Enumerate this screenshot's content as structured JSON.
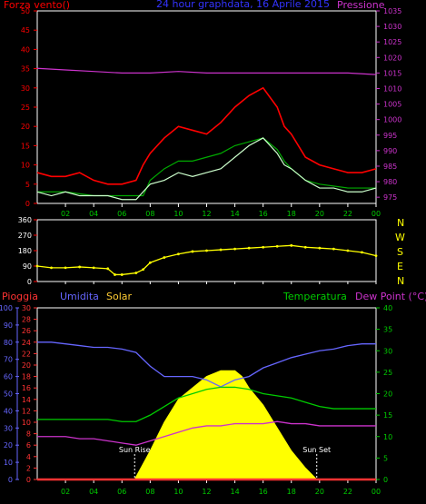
{
  "header": {
    "left_label": "Forza vento()",
    "title": "24 hour graphdata, 16 Aprile 2015",
    "right_label": "Pressione"
  },
  "wind_dir_labels": [
    "N",
    "W",
    "S",
    "E",
    "N"
  ],
  "bottom_header": {
    "rain_label": "Pioggia",
    "humidity_label": "Umidita",
    "solar_label": "Solar",
    "temp_label": "Temperatura",
    "dew_label": "Dew Point (°C)"
  },
  "sun_labels": {
    "rise": "Sun Rise",
    "set": "Sun Set"
  },
  "colors": {
    "wind_gust": "#ff0000",
    "wind_avg": "#ccffcc",
    "wind_hi": "#00aa00",
    "pressure": "#cc33cc",
    "direction": "#ffff00",
    "rain": "#ff3333",
    "humidity": "#6666ff",
    "solar": "#ffff00",
    "temperature": "#00cc00",
    "dewpoint": "#cc33cc",
    "axis_left": "#ff0000",
    "axis_right": "#cc33cc",
    "axis_humidity": "#6666ff",
    "axis_temp": "#00cc00",
    "time_ticks": "#00cc00"
  },
  "chart_data": [
    {
      "type": "line",
      "id": "wind_pressure",
      "x_ticks": [
        "02",
        "04",
        "06",
        "08",
        "10",
        "12",
        "14",
        "16",
        "18",
        "20",
        "22",
        "00"
      ],
      "left_axis": {
        "label": "Forza vento()",
        "ticks": [
          0,
          5,
          10,
          15,
          20,
          25,
          30,
          35,
          40,
          45,
          50
        ],
        "range": [
          0,
          50
        ]
      },
      "right_axis": {
        "label": "Pressione",
        "ticks": [
          975,
          980,
          985,
          990,
          995,
          1000,
          1005,
          1010,
          1015,
          1020,
          1025,
          1030,
          1035
        ],
        "range": [
          973,
          1035
        ]
      },
      "series": [
        {
          "color_key": "wind_gust",
          "x": [
            0,
            1,
            2,
            3,
            4,
            5,
            6,
            7,
            7.5,
            8,
            9,
            10,
            11,
            12,
            13,
            14,
            15,
            16,
            17,
            17.5,
            18,
            19,
            20,
            21,
            22,
            23,
            24
          ],
          "y": [
            8,
            7,
            7,
            8,
            6,
            5,
            5,
            6,
            10,
            13,
            17,
            20,
            19,
            18,
            21,
            25,
            28,
            30,
            25,
            20,
            18,
            12,
            10,
            9,
            8,
            8,
            9
          ]
        },
        {
          "color_key": "wind_hi",
          "x": [
            0,
            2,
            4,
            6,
            7.5,
            8,
            9,
            10,
            11,
            12,
            13,
            14,
            15,
            16,
            17,
            17.5,
            18,
            19,
            20,
            22,
            24
          ],
          "y": [
            3,
            3,
            2,
            2,
            2,
            6,
            9,
            11,
            11,
            12,
            13,
            15,
            16,
            17,
            14,
            11,
            9,
            6,
            5,
            4,
            4
          ]
        },
        {
          "color_key": "wind_avg",
          "x": [
            0,
            1,
            2,
            3,
            4,
            5,
            6,
            7,
            7.5,
            8,
            9,
            10,
            11,
            12,
            13,
            14,
            15,
            16,
            17,
            17.5,
            18,
            19,
            20,
            21,
            22,
            23,
            24
          ],
          "y": [
            3,
            2,
            3,
            2,
            2,
            2,
            1,
            1,
            3,
            5,
            6,
            8,
            7,
            8,
            9,
            12,
            15,
            17,
            13,
            10,
            9,
            6,
            4,
            4,
            3,
            3,
            4
          ]
        },
        {
          "color_key": "pressure",
          "x": [
            0,
            2,
            4,
            6,
            8,
            10,
            12,
            14,
            16,
            18,
            20,
            22,
            24
          ],
          "y": [
            1016.5,
            1016,
            1015.5,
            1015,
            1015,
            1015.5,
            1015,
            1015,
            1015,
            1015,
            1015,
            1015,
            1014.5
          ]
        }
      ]
    },
    {
      "type": "scatter",
      "id": "wind_direction",
      "x_ticks": [
        "02",
        "04",
        "06",
        "08",
        "10",
        "12",
        "14",
        "16",
        "18",
        "20",
        "22",
        "00"
      ],
      "left_axis": {
        "ticks": [
          0,
          90,
          180,
          270,
          360
        ],
        "range": [
          0,
          360
        ]
      },
      "series": [
        {
          "color_key": "direction",
          "x": [
            0,
            1,
            2,
            3,
            4,
            5,
            5.5,
            6,
            7,
            7.5,
            8,
            9,
            10,
            11,
            12,
            13,
            14,
            15,
            16,
            17,
            18,
            19,
            20,
            21,
            22,
            23,
            24
          ],
          "y": [
            90,
            80,
            80,
            85,
            80,
            75,
            40,
            40,
            50,
            70,
            110,
            140,
            160,
            175,
            180,
            185,
            190,
            195,
            200,
            205,
            210,
            200,
            195,
            190,
            180,
            170,
            150
          ]
        }
      ]
    },
    {
      "type": "area",
      "id": "rain_humidity_solar_temp",
      "x_ticks": [
        "02",
        "04",
        "06",
        "08",
        "10",
        "12",
        "14",
        "16",
        "18",
        "20",
        "22",
        "00"
      ],
      "humidity_axis": {
        "ticks": [
          0,
          10,
          20,
          30,
          40,
          50,
          60,
          70,
          80,
          90,
          100
        ],
        "range": [
          0,
          100
        ]
      },
      "rain_axis": {
        "ticks": [
          0,
          2,
          4,
          6,
          8,
          10,
          12,
          14,
          16,
          18,
          20,
          22,
          24,
          26,
          28,
          30
        ],
        "range": [
          0,
          30
        ]
      },
      "temp_axis": {
        "ticks": [
          0,
          5,
          10,
          15,
          20,
          25,
          30,
          35,
          40
        ],
        "range": [
          0,
          40
        ]
      },
      "series": [
        {
          "color_key": "humidity",
          "axis": "humidity",
          "x": [
            0,
            1,
            2,
            3,
            4,
            5,
            6,
            7,
            8,
            9,
            10,
            11,
            12,
            13,
            14,
            15,
            16,
            17,
            18,
            19,
            20,
            21,
            22,
            23,
            24
          ],
          "y": [
            80,
            80,
            79,
            78,
            77,
            77,
            76,
            74,
            66,
            60,
            60,
            60,
            58,
            54,
            58,
            60,
            65,
            68,
            71,
            73,
            75,
            76,
            78,
            79,
            79
          ]
        },
        {
          "color_key": "temperature",
          "axis": "temp",
          "x": [
            0,
            1,
            2,
            3,
            4,
            5,
            6,
            7,
            8,
            9,
            10,
            11,
            12,
            13,
            14,
            15,
            16,
            17,
            18,
            19,
            20,
            21,
            22,
            23,
            24
          ],
          "y": [
            14,
            14,
            14,
            14,
            14,
            14,
            13.5,
            13.5,
            15,
            17,
            19,
            20,
            21,
            21.5,
            21.5,
            21,
            20,
            19.5,
            19,
            18,
            17,
            16.5,
            16.5,
            16.5,
            16.5
          ]
        },
        {
          "color_key": "dewpoint",
          "axis": "temp",
          "x": [
            0,
            1,
            2,
            3,
            4,
            5,
            6,
            7,
            8,
            9,
            10,
            11,
            12,
            13,
            14,
            15,
            16,
            17,
            18,
            19,
            20,
            21,
            22,
            23,
            24
          ],
          "y": [
            10,
            10,
            10,
            9.5,
            9.5,
            9,
            8.5,
            8,
            9,
            10,
            11,
            12,
            12.5,
            12.5,
            13,
            13,
            13,
            13.5,
            13,
            13,
            12.5,
            12.5,
            12.5,
            12.5,
            12.5
          ]
        },
        {
          "color_key": "solar",
          "axis": "rain",
          "x": [
            6.9,
            8,
            9,
            10,
            11,
            12,
            13,
            14,
            14.5,
            15,
            16,
            17,
            18,
            19,
            19.8
          ],
          "y": [
            0,
            5,
            10,
            14,
            16,
            18,
            19,
            19,
            18,
            16,
            13,
            9,
            5,
            2,
            0
          ]
        },
        {
          "color_key": "rain",
          "axis": "rain",
          "x": [
            0,
            24
          ],
          "y": [
            0,
            0
          ]
        }
      ],
      "markers": [
        {
          "x": 6.9,
          "label_key": "rise"
        },
        {
          "x": 19.8,
          "label_key": "set"
        }
      ]
    }
  ]
}
